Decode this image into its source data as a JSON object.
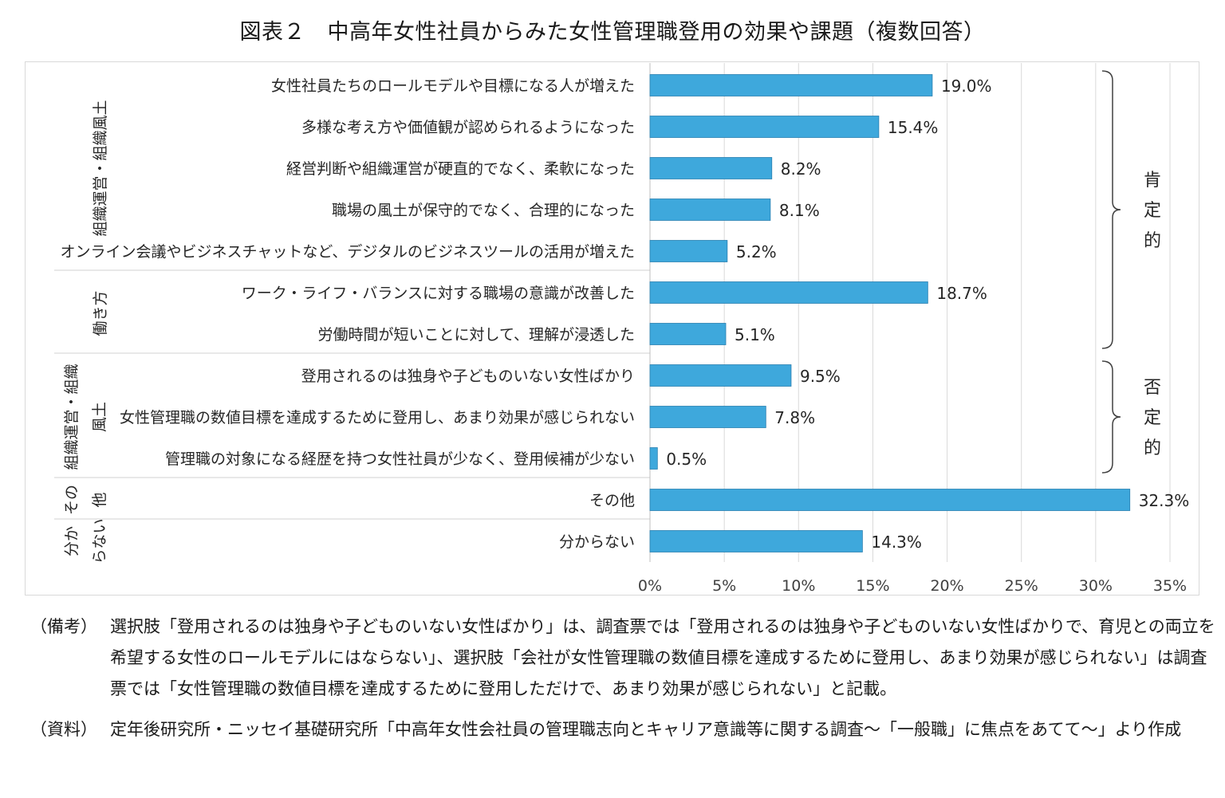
{
  "title": "図表２　中高年女性社員からみた女性管理職登用の効果や課題（複数回答）",
  "chart_data": {
    "type": "bar",
    "orientation": "horizontal",
    "title": "図表２　中高年女性社員からみた女性管理職登用の効果や課題（複数回答）",
    "categories": [
      "女性社員たちのロールモデルや目標になる人が増えた",
      "多様な考え方や価値観が認められるようになった",
      "経営判断や組織運営が硬直的でなく、柔軟になった",
      "職場の風土が保守的でなく、合理的になった",
      "オンライン会議やビジネスチャットなど、デジタルのビジネスツールの活用が増えた",
      "ワーク・ライフ・バランスに対する職場の意識が改善した",
      "労働時間が短いことに対して、理解が浸透した",
      "登用されるのは独身や子どものいない女性ばかり",
      "女性管理職の数値目標を達成するために登用し、あまり効果が感じられない",
      "管理職の対象になる経歴を持つ女性社員が少なく、登用候補が少ない",
      "その他",
      "分からない"
    ],
    "values": [
      19.0,
      15.4,
      8.2,
      8.1,
      5.2,
      18.7,
      5.1,
      9.5,
      7.8,
      0.5,
      32.3,
      14.3
    ],
    "value_labels": [
      "19.0%",
      "15.4%",
      "8.2%",
      "8.1%",
      "5.2%",
      "18.7%",
      "5.1%",
      "9.5%",
      "7.8%",
      "0.5%",
      "32.3%",
      "14.3%"
    ],
    "xlim": [
      0,
      35
    ],
    "x_ticks": [
      0,
      5,
      10,
      15,
      20,
      25,
      30,
      35
    ],
    "x_tick_labels": [
      "0%",
      "5%",
      "10%",
      "15%",
      "20%",
      "25%",
      "30%",
      "35%"
    ],
    "grid": true,
    "bar_color": "#3ea8dc",
    "groups": [
      {
        "lines": [
          "組織運営・組織風土"
        ],
        "first": 0,
        "last": 4
      },
      {
        "lines": [
          "働き方"
        ],
        "first": 5,
        "last": 6
      },
      {
        "lines": [
          "組織運営・組織",
          "風土"
        ],
        "first": 7,
        "last": 9
      },
      {
        "lines": [
          "その",
          "他"
        ],
        "first": 10,
        "last": 10
      },
      {
        "lines": [
          "分か",
          "らない"
        ],
        "first": 11,
        "last": 11
      }
    ],
    "brackets": [
      {
        "label": "肯定的",
        "first": 0,
        "last": 6
      },
      {
        "label": "否定的",
        "first": 7,
        "last": 9
      }
    ]
  },
  "notes": {
    "biko_head": "（備考）",
    "biko_text": "選択肢「登用されるのは独身や子どものいない女性ばかり」は、調査票では「登用されるのは独身や子どものいない女性ばかりで、育児との両立を希望する女性のロールモデルにはならない」、選択肢「会社が女性管理職の数値目標を達成するために登用し、あまり効果が感じられない」は調査票では「女性管理職の数値目標を達成するために登用しただけで、あまり効果が感じられない」と記載。",
    "shiryo_head": "（資料）",
    "shiryo_text": "定年後研究所・ニッセイ基礎研究所「中高年女性会社員の管理職志向とキャリア意識等に関する調査～「一般職」に焦点をあてて～」より作成"
  }
}
